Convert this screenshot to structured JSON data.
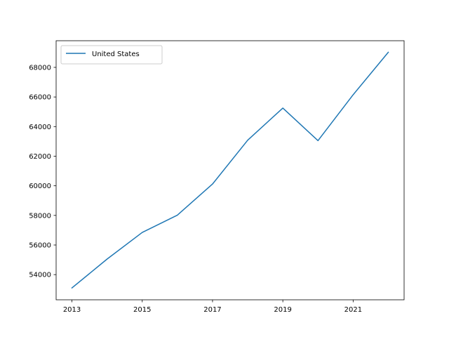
{
  "chart_data": {
    "type": "line",
    "title": "",
    "xlabel": "",
    "ylabel": "",
    "x": [
      2013,
      2014,
      2015,
      2016,
      2017,
      2018,
      2019,
      2020,
      2021,
      2022
    ],
    "series": [
      {
        "name": "United States",
        "color": "#1f77b4",
        "values": [
          53100,
          55050,
          56850,
          58020,
          60120,
          63080,
          65250,
          63050,
          66150,
          69020
        ]
      }
    ],
    "xlim": [
      2012.55,
      2022.45
    ],
    "ylim": [
      52300,
      69800
    ],
    "xticks": [
      2013,
      2015,
      2017,
      2019,
      2021
    ],
    "xtick_labels": [
      "2013",
      "2015",
      "2017",
      "2019",
      "2021"
    ],
    "yticks": [
      54000,
      56000,
      58000,
      60000,
      62000,
      64000,
      66000,
      68000
    ],
    "ytick_labels": [
      "54000",
      "56000",
      "58000",
      "60000",
      "62000",
      "64000",
      "66000",
      "68000"
    ],
    "grid": false,
    "legend_position": "upper-left"
  }
}
